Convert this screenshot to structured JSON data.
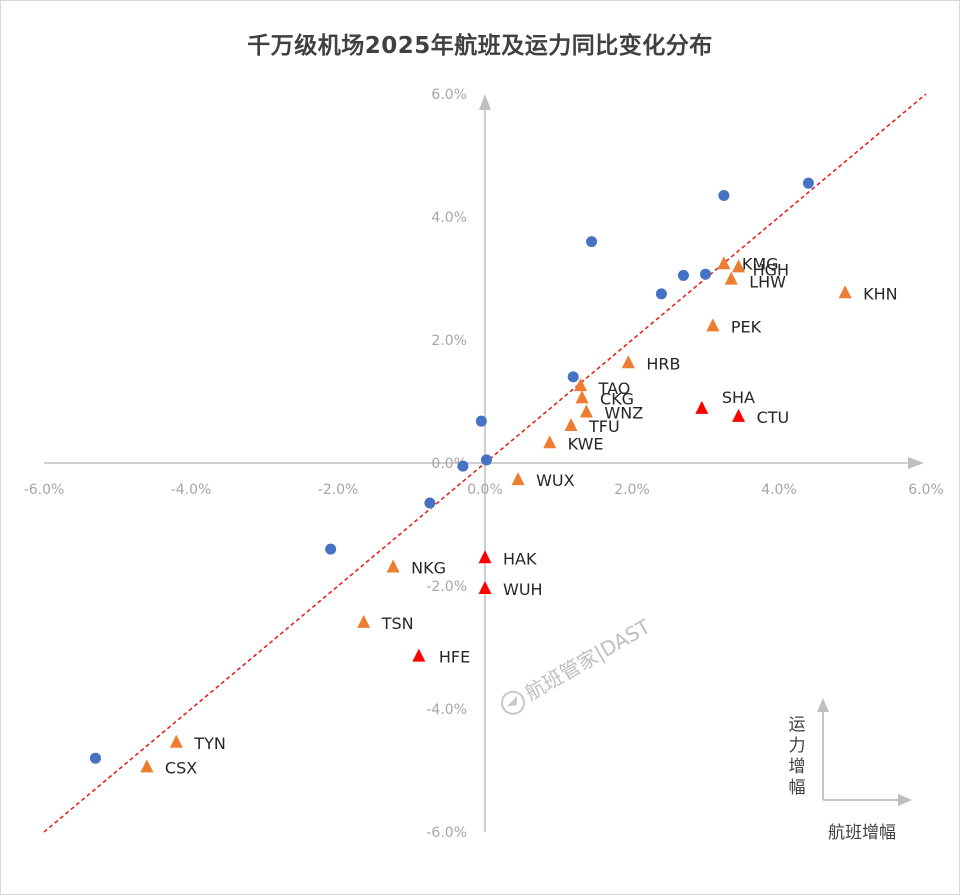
{
  "chart_data": {
    "type": "scatter",
    "title": "千万级机场2025年航班及运力同比变化分布",
    "x_axis": {
      "min": -6,
      "max": 6,
      "unit": "%",
      "ticks": [
        "-6.0%",
        "-4.0%",
        "-2.0%",
        "0.0%",
        "2.0%",
        "4.0%",
        "6.0%"
      ],
      "tick_values": [
        -6,
        -4,
        -2,
        0,
        2,
        4,
        6
      ]
    },
    "y_axis": {
      "min": -6,
      "max": 6,
      "unit": "%",
      "ticks": [
        "-6.0%",
        "-4.0%",
        "-2.0%",
        "0.0%",
        "2.0%",
        "4.0%",
        "6.0%"
      ],
      "tick_values": [
        -6,
        -4,
        -2,
        0,
        2,
        4,
        6
      ]
    },
    "reference_line": {
      "type": "y=x",
      "style": "dashed",
      "color": "#e8231b"
    },
    "colors": {
      "blue": "#4472c4",
      "orange": "#ed7d31",
      "red": "#ff0000",
      "axis": "#bfbfbf"
    },
    "series": [
      {
        "marker": "circle",
        "color": "#4472c4",
        "points": [
          {
            "x": -5.3,
            "y": -4.8
          },
          {
            "x": -2.1,
            "y": -1.4
          },
          {
            "x": -0.75,
            "y": -0.65
          },
          {
            "x": -0.3,
            "y": -0.05
          },
          {
            "x": -0.05,
            "y": 0.68
          },
          {
            "x": 0.02,
            "y": 0.05
          },
          {
            "x": 1.2,
            "y": 1.4
          },
          {
            "x": 1.45,
            "y": 3.6
          },
          {
            "x": 2.4,
            "y": 2.75
          },
          {
            "x": 2.7,
            "y": 3.05
          },
          {
            "x": 3.0,
            "y": 3.07
          },
          {
            "x": 3.25,
            "y": 4.35
          },
          {
            "x": 4.4,
            "y": 4.55
          }
        ]
      },
      {
        "marker": "triangle",
        "color": "#ed7d31",
        "points": [
          {
            "label": "KMG",
            "x": 3.25,
            "y": 3.23
          },
          {
            "label": "HGH",
            "x": 3.45,
            "y": 3.18
          },
          {
            "label": "LHW",
            "x": 3.35,
            "y": 2.98
          },
          {
            "label": "KHN",
            "x": 4.9,
            "y": 2.76
          },
          {
            "label": "PEK",
            "x": 3.1,
            "y": 2.22
          },
          {
            "label": "HRB",
            "x": 1.95,
            "y": 1.62
          },
          {
            "label": "TAO",
            "x": 1.3,
            "y": 1.25
          },
          {
            "label": "CKG",
            "x": 1.32,
            "y": 1.05
          },
          {
            "label": "WNZ",
            "x": 1.38,
            "y": 0.82
          },
          {
            "label": "TFU",
            "x": 1.17,
            "y": 0.6
          },
          {
            "label": "KWE",
            "x": 0.88,
            "y": 0.32
          },
          {
            "label": "WUX",
            "x": 0.45,
            "y": -0.28
          },
          {
            "label": "NKG",
            "x": -1.25,
            "y": -1.7
          },
          {
            "label": "TSN",
            "x": -1.65,
            "y": -2.6
          },
          {
            "label": "TYN",
            "x": -4.2,
            "y": -4.55
          },
          {
            "label": "CSX",
            "x": -4.6,
            "y": -4.95
          }
        ]
      },
      {
        "marker": "triangle",
        "color": "#ff0000",
        "points": [
          {
            "label": "SHA",
            "x": 2.95,
            "y": 0.88
          },
          {
            "label": "CTU",
            "x": 3.45,
            "y": 0.75
          },
          {
            "label": "HAK",
            "x": 0.0,
            "y": -1.55
          },
          {
            "label": "WUH",
            "x": 0.0,
            "y": -2.05
          },
          {
            "label": "HFE",
            "x": -0.9,
            "y": -3.15
          }
        ]
      }
    ],
    "axis_legend": {
      "y_label": "运力增幅",
      "x_label": "航班增幅"
    },
    "watermark": "航班管家|DAST"
  }
}
